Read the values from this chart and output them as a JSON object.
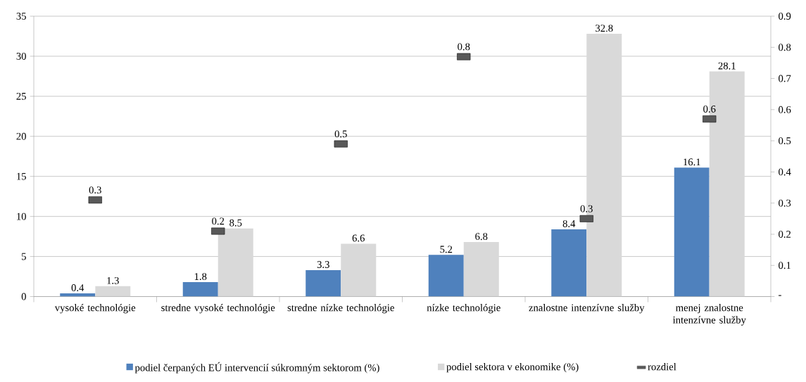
{
  "chart_data": {
    "type": "bar",
    "categories": [
      "vysoké technológie",
      "stredne vysoké technológie",
      "stredne nízke technológie",
      "nízke technológie",
      "znalostne intenzívne služby",
      "menej znalostne intenzívne služby"
    ],
    "series": [
      {
        "name": "podiel čerpaných EÚ intervencií súkromným sektorom (%)",
        "color": "#4f81bd",
        "values": [
          0.4,
          1.8,
          3.3,
          5.2,
          8.4,
          16.1
        ]
      },
      {
        "name": "podiel sektora v ekonomike (%)",
        "color": "#d9d9d9",
        "values": [
          1.3,
          8.5,
          6.6,
          6.8,
          32.8,
          28.1
        ]
      },
      {
        "name": "rozdiel",
        "type": "scatter",
        "axis": "y2",
        "color": "#595959",
        "values": [
          0.31,
          0.21,
          0.49,
          0.77,
          0.25,
          0.57
        ],
        "value_labels": [
          "0.3",
          "0.2",
          "0.5",
          "0.8",
          "0.3",
          "0.6"
        ],
        "marker": "square"
      }
    ],
    "ylim": [
      0,
      35
    ],
    "yticks": [
      0,
      5,
      10,
      15,
      20,
      25,
      30,
      35
    ],
    "y2lim": [
      0,
      0.9
    ],
    "y2ticks": [
      {
        "value": 0,
        "label": "-"
      },
      0.1,
      0.2,
      0.3,
      0.4,
      0.5,
      0.6,
      0.7,
      0.8,
      0.9
    ],
    "grid": "y",
    "legend": "bottom",
    "data_labels": true
  }
}
